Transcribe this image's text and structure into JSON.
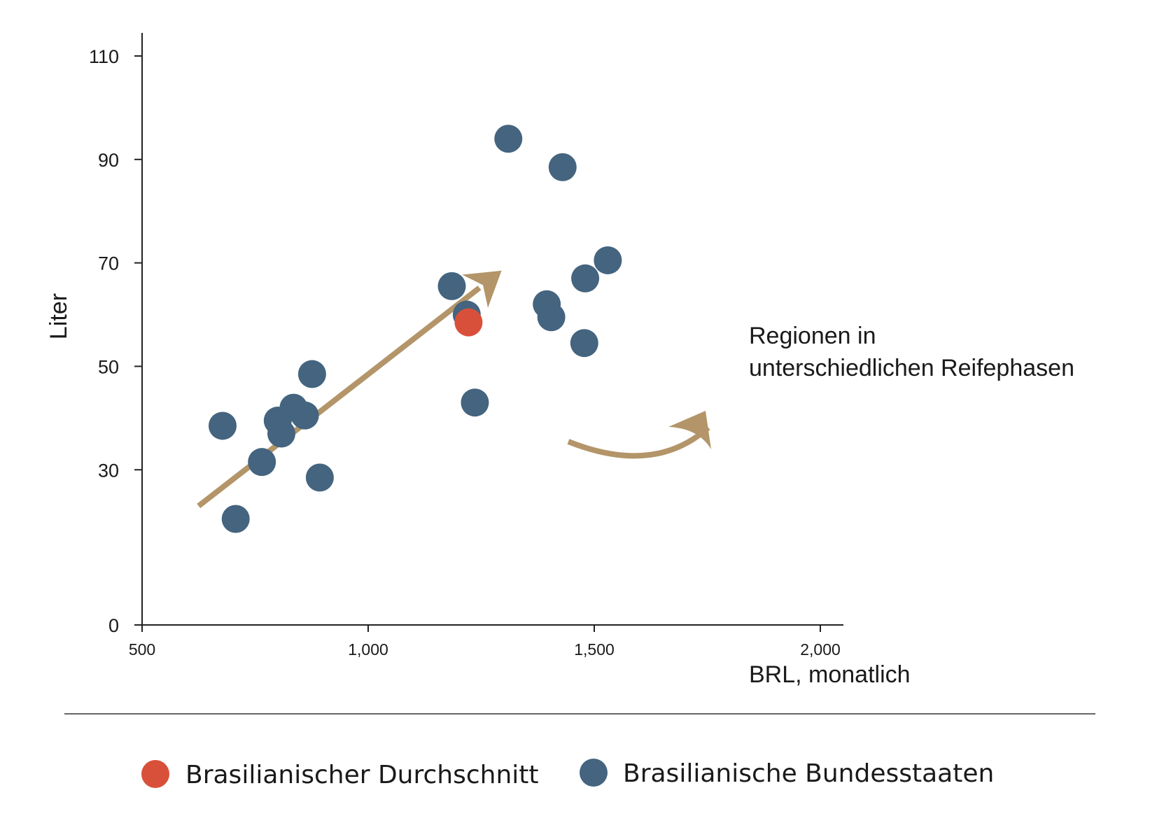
{
  "chart_data": {
    "type": "scatter",
    "xlabel": "BRL, monatlich",
    "ylabel": "Liter",
    "xlim": [
      500,
      2000
    ],
    "ylim": [
      0,
      110
    ],
    "x_ticks": [
      500,
      1000,
      1500,
      2000
    ],
    "x_tick_labels": [
      "500",
      "1,000",
      "1,500",
      "2,000"
    ],
    "y_ticks": [
      0,
      30,
      50,
      70,
      90,
      110
    ],
    "y_tick_labels": [
      "0",
      "30",
      "50",
      "70",
      "90",
      "110"
    ],
    "grid": false,
    "legend_position": "bottom",
    "series": [
      {
        "name": "Brasilianische Bundesstaaten",
        "color": "#44647f",
        "points": [
          {
            "x": 1310,
            "y": 94
          },
          {
            "x": 1430,
            "y": 88.5
          },
          {
            "x": 1530,
            "y": 70.5
          },
          {
            "x": 1480,
            "y": 67
          },
          {
            "x": 1185,
            "y": 65.5
          },
          {
            "x": 1395,
            "y": 62
          },
          {
            "x": 1405,
            "y": 59.5
          },
          {
            "x": 1218,
            "y": 60
          },
          {
            "x": 1478,
            "y": 54.5
          },
          {
            "x": 1236,
            "y": 43
          },
          {
            "x": 876,
            "y": 48.5
          },
          {
            "x": 835,
            "y": 42
          },
          {
            "x": 860,
            "y": 40.5
          },
          {
            "x": 800,
            "y": 39.5
          },
          {
            "x": 808,
            "y": 37
          },
          {
            "x": 678,
            "y": 38.5
          },
          {
            "x": 765,
            "y": 31.5
          },
          {
            "x": 893,
            "y": 28.5
          },
          {
            "x": 707,
            "y": 20.5
          }
        ]
      },
      {
        "name": "Brasilianischer Durchschnitt",
        "color": "#d9503a",
        "points": [
          {
            "x": 1222,
            "y": 58.5
          }
        ]
      }
    ],
    "annotations": [
      {
        "text_lines": [
          "Regionen in",
          "unterschiedlichen Reifephasen"
        ]
      }
    ],
    "trend_arrow": {
      "from": [
        625,
        23
      ],
      "to": [
        1295,
        68.5
      ],
      "color": "#b39569"
    },
    "curved_arrow_color": "#b39569"
  },
  "legend": {
    "items": [
      {
        "label": "Brasilianischer Durchschnitt",
        "color": "#d9503a"
      },
      {
        "label": "Brasilianische Bundesstaaten",
        "color": "#44647f"
      }
    ]
  }
}
